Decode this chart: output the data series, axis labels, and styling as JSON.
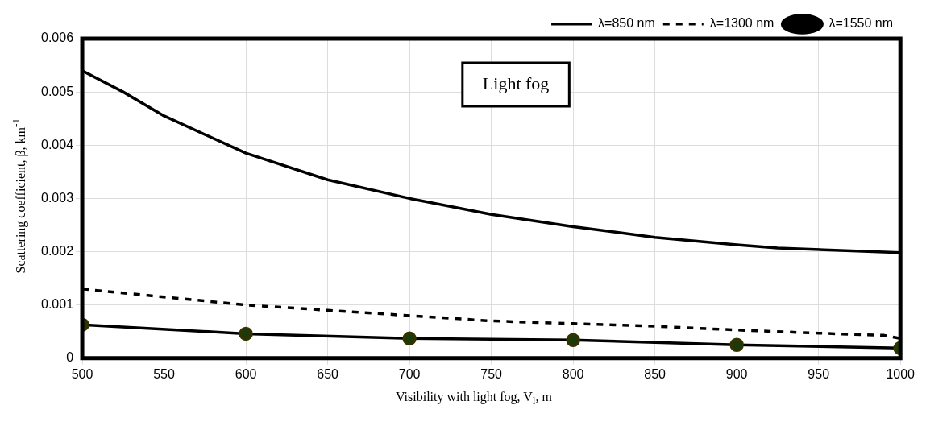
{
  "chart_data": {
    "type": "line",
    "xlabel": "Visibility with light fog, V$_{l}$, m",
    "ylabel": "Scattering coefficient, β, km$^{-1}$",
    "annotations": [
      "Light fog"
    ],
    "xlim": [
      500,
      1000
    ],
    "xticks": [
      500,
      550,
      600,
      650,
      700,
      750,
      800,
      850,
      900,
      950,
      1000
    ],
    "ylim": [
      0,
      0.006
    ],
    "yticks": [
      0,
      0.001,
      0.002,
      0.003,
      0.004,
      0.005,
      0.006
    ],
    "grid": true,
    "legend": "top right",
    "series": [
      {
        "name": "λ=850 nm",
        "color": "#000000",
        "marker": "none",
        "line_style": "solid",
        "x": [
          500,
          525,
          550,
          600,
          650,
          700,
          750,
          800,
          850,
          900,
          925,
          1000
        ],
        "values": [
          0.0054,
          0.005,
          0.00455,
          0.00385,
          0.00335,
          0.003,
          0.0027,
          0.00247,
          0.00227,
          0.00213,
          0.00207,
          0.00198
        ]
      },
      {
        "name": "λ=1300 nm",
        "color": "#000000",
        "marker": "none",
        "line_style": "dashed",
        "x": [
          500,
          550,
          600,
          650,
          700,
          750,
          800,
          850,
          900,
          950,
          990,
          1000
        ],
        "values": [
          0.0013,
          0.00115,
          0.001,
          0.0009,
          0.0008,
          0.0007,
          0.00065,
          0.0006,
          0.00053,
          0.00047,
          0.00043,
          0.00037
        ]
      },
      {
        "name": "λ=1550 nm",
        "color": "#000000",
        "marker": "circle",
        "line_style": "solid",
        "x": [
          500,
          600,
          700,
          800,
          900,
          1000
        ],
        "values": [
          0.00063,
          0.00046,
          0.00037,
          0.00034,
          0.00025,
          0.00019
        ]
      }
    ]
  }
}
